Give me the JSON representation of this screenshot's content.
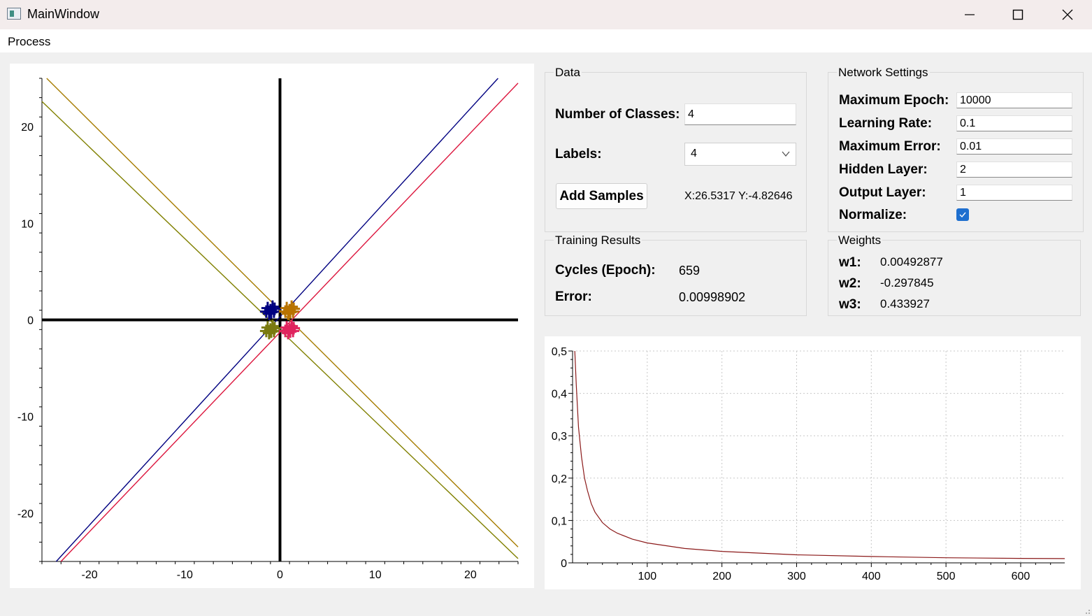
{
  "window": {
    "title": "MainWindow"
  },
  "menu": {
    "items": [
      "Process"
    ]
  },
  "data_group": {
    "title": "Data",
    "num_classes_label": "Number of Classes:",
    "num_classes_value": "4",
    "labels_label": "Labels:",
    "labels_selected": "4",
    "add_samples_label": "Add Samples",
    "coords_text": "X:26.5317 Y:-4.82646"
  },
  "network_group": {
    "title": "Network Settings",
    "max_epoch_label": "Maximum Epoch:",
    "max_epoch_value": "10000",
    "learning_rate_label": "Learning Rate:",
    "learning_rate_value": "0.1",
    "max_error_label": "Maximum Error:",
    "max_error_value": "0.01",
    "hidden_layer_label": "Hidden Layer:",
    "hidden_layer_value": "2",
    "output_layer_label": "Output Layer:",
    "output_layer_value": "1",
    "normalize_label": "Normalize:",
    "normalize_checked": true
  },
  "training_group": {
    "title": "Training Results",
    "cycles_label": "Cycles (Epoch):",
    "cycles_value": "659",
    "error_label": "Error:",
    "error_value": "0.00998902"
  },
  "weights_group": {
    "title": "Weights",
    "w1_label": "w1:",
    "w1_value": "0.00492877",
    "w2_label": "w2:",
    "w2_value": "-0.297845",
    "w3_label": "w3:",
    "w3_value": "0.433927"
  },
  "colors": {
    "class1": "#000080",
    "class2": "#b87300",
    "class3": "#7a7a10",
    "class4": "#e0245e",
    "line_blue": "#000080",
    "line_red": "#dc143c",
    "line_olive": "#808000",
    "line_orange": "#a67c00",
    "error_curve": "#8b1a1a"
  },
  "chart_data": [
    {
      "type": "scatter",
      "xlim": [
        -25,
        25
      ],
      "ylim": [
        -25,
        25
      ],
      "x_ticks": [
        -20,
        -10,
        0,
        10,
        20
      ],
      "y_ticks": [
        20,
        10,
        0,
        -10,
        -20
      ],
      "x_tick_labels": [
        "-20",
        "-10",
        "0",
        "10",
        "20"
      ],
      "y_tick_labels": [
        "20",
        "10",
        "0",
        "-10",
        "-20"
      ],
      "clusters": [
        {
          "center": [
            -1,
            1
          ],
          "color": "#000080"
        },
        {
          "center": [
            1,
            1
          ],
          "color": "#b87300"
        },
        {
          "center": [
            -1,
            -1
          ],
          "color": "#7a7a10"
        },
        {
          "center": [
            1,
            -1
          ],
          "color": "#e0245e"
        }
      ],
      "lines": [
        {
          "p1": [
            -23.5,
            -25
          ],
          "p2": [
            22.9,
            25
          ],
          "color": "#000080"
        },
        {
          "p1": [
            -23,
            -25
          ],
          "p2": [
            25,
            24.5
          ],
          "color": "#dc143c"
        },
        {
          "p1": [
            -24.5,
            25
          ],
          "p2": [
            25,
            -23.5
          ],
          "color": "#a67c00"
        },
        {
          "p1": [
            -25,
            22.6
          ],
          "p2": [
            25,
            -24.7
          ],
          "color": "#808000"
        }
      ]
    },
    {
      "type": "line",
      "xlim": [
        0,
        659
      ],
      "ylim": [
        0,
        0.5
      ],
      "x_ticks": [
        100,
        200,
        300,
        400,
        500,
        600
      ],
      "x_tick_labels": [
        "100",
        "200",
        "300",
        "400",
        "500",
        "600"
      ],
      "y_ticks": [
        0,
        0.1,
        0.2,
        0.3,
        0.4,
        0.5
      ],
      "y_tick_labels": [
        "0",
        "0,1",
        "0,2",
        "0,3",
        "0,4",
        "0,5"
      ],
      "grid": true,
      "series": [
        {
          "x": [
            3,
            5,
            8,
            12,
            16,
            20,
            25,
            30,
            40,
            50,
            60,
            80,
            100,
            150,
            200,
            300,
            400,
            500,
            600,
            659
          ],
          "y": [
            0.5,
            0.42,
            0.32,
            0.25,
            0.2,
            0.17,
            0.14,
            0.12,
            0.095,
            0.08,
            0.07,
            0.056,
            0.047,
            0.034,
            0.027,
            0.019,
            0.015,
            0.012,
            0.0105,
            0.00999
          ]
        }
      ]
    }
  ]
}
